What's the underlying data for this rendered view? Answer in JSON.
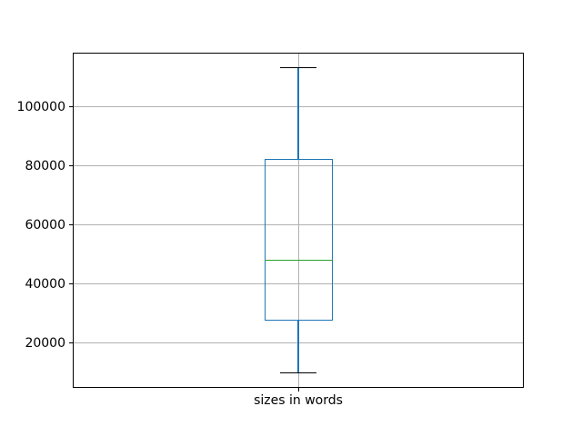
{
  "figure": {
    "background": "#ffffff"
  },
  "chart_data": {
    "type": "boxplot",
    "title": "",
    "xlabel": "",
    "ylabel": "",
    "categories": [
      "sizes in words"
    ],
    "series": [
      {
        "name": "sizes in words",
        "whisker_low": 10000,
        "q1": 27800,
        "median": 48200,
        "q3": 82400,
        "whisker_high": 113400,
        "outliers": []
      }
    ],
    "yticks": [
      "20000",
      "40000",
      "60000",
      "80000",
      "100000"
    ],
    "ytick_values": [
      20000,
      40000,
      60000,
      80000,
      100000
    ],
    "ylim": [
      4830,
      118570
    ],
    "grid": true,
    "legend_position": "none",
    "colors": {
      "box": "#1f77b4",
      "whisker": "#1f77b4",
      "cap": "#000000",
      "median": "#2ca02c",
      "grid": "#b0b0b0",
      "spine": "#000000",
      "text": "#000000",
      "background": "#ffffff"
    }
  }
}
